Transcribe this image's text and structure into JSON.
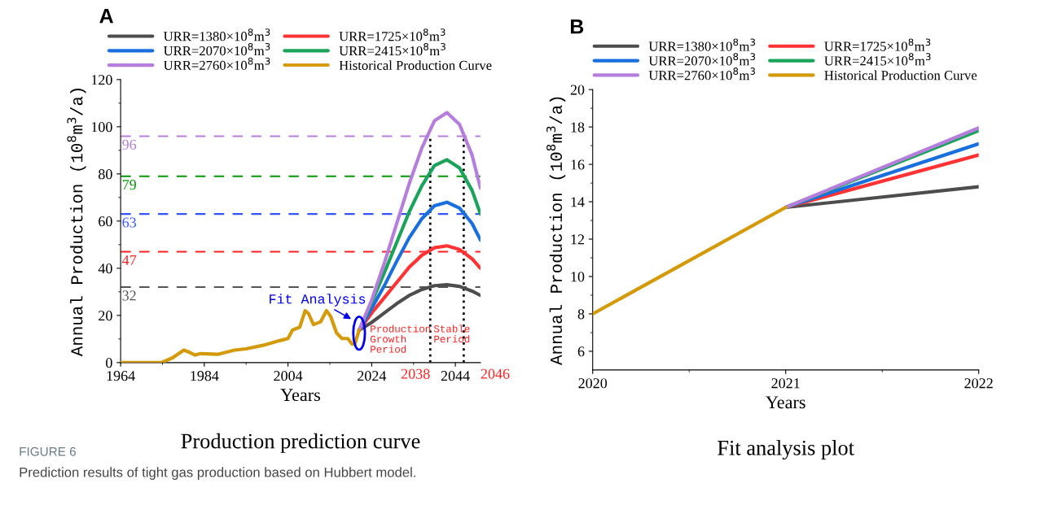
{
  "chart_data": [
    {
      "type": "line",
      "title": "A",
      "subtitle": "Production prediction curve",
      "xlabel": "Years",
      "ylabel": "Annual Production (10$^{8}$m$^{3}$/a)",
      "xlim": [
        1964,
        2050
      ],
      "xticks": [
        1964,
        1984,
        2004,
        2024,
        2044
      ],
      "ylim": [
        0,
        120
      ],
      "yticks": [
        0,
        20,
        40,
        60,
        80,
        100,
        120
      ],
      "legend": "top",
      "series": [
        {
          "name": "URR=1380×10$^{8}$m$^{3}$",
          "color": "#4d4d4d",
          "x": [
            2021,
            2024,
            2027,
            2030,
            2033,
            2036,
            2039,
            2042,
            2045,
            2048,
            2050
          ],
          "values": [
            13.7,
            17,
            21,
            25,
            28.5,
            31,
            32.6,
            33,
            32.3,
            30.3,
            28.5
          ]
        },
        {
          "name": "URR=1725×10$^{8}$m$^{3}$",
          "color": "#ff3333",
          "x": [
            2021,
            2024,
            2027,
            2030,
            2033,
            2036,
            2039,
            2042,
            2045,
            2048,
            2050
          ],
          "values": [
            13.7,
            21,
            27.5,
            34,
            40.5,
            45.5,
            48.7,
            49.5,
            48,
            44,
            40
          ]
        },
        {
          "name": "URR=2070×10$^{8}$m$^{3}$",
          "color": "#1a6fdf",
          "x": [
            2021,
            2024,
            2027,
            2030,
            2033,
            2036,
            2039,
            2042,
            2045,
            2048,
            2050
          ],
          "values": [
            13.7,
            23,
            32.5,
            43,
            53,
            61,
            66.5,
            68,
            65.5,
            59,
            52
          ]
        },
        {
          "name": "URR=2415×10$^{8}$m$^{3}$",
          "color": "#1aa35a",
          "x": [
            2021,
            2024,
            2027,
            2030,
            2033,
            2036,
            2039,
            2042,
            2045,
            2048,
            2050
          ],
          "values": [
            13.7,
            25.5,
            38,
            51,
            64,
            75,
            83.5,
            86,
            82.5,
            73,
            63
          ]
        },
        {
          "name": "URR=2760×10$^{8}$m$^{3}$",
          "color": "#b57edc",
          "x": [
            2021,
            2024,
            2027,
            2030,
            2033,
            2036,
            2039,
            2042,
            2045,
            2048,
            2050
          ],
          "values": [
            13.7,
            26.5,
            42,
            59,
            76,
            91,
            102.5,
            106,
            101,
            88,
            74
          ]
        },
        {
          "name": "Historical Production Curve",
          "color": "#d49a0a",
          "x": [
            1964,
            1973.7,
            1976.4,
            1979.1,
            1980.4,
            1981.8,
            1983.1,
            1987.2,
            1991.2,
            1993.9,
            1998,
            2002,
            2004,
            2005.1,
            2006.8,
            2008.1,
            2008.9,
            2010.1,
            2011.8,
            2013.2,
            2014.2,
            2015.6,
            2016.9,
            2018.3,
            2019.3,
            2020,
            2021
          ],
          "values": [
            0,
            0,
            2,
            5.3,
            4.4,
            3.2,
            3.8,
            3.5,
            5.3,
            5.8,
            7.3,
            9.3,
            10.2,
            13.8,
            15,
            22,
            20.8,
            16.1,
            17.3,
            22,
            19.6,
            12.6,
            10.2,
            10.2,
            7.9,
            8,
            13.7
          ]
        }
      ],
      "ref_lines": [
        {
          "axis": "y",
          "value": 96,
          "label": "96",
          "color": "#b57edc",
          "line_style": "dashed"
        },
        {
          "axis": "y",
          "value": 79,
          "label": "79",
          "color": "#009900",
          "line_style": "dashed"
        },
        {
          "axis": "y",
          "value": 63,
          "label": "63",
          "color": "#3355ff",
          "line_style": "dashed"
        },
        {
          "axis": "y",
          "value": 47,
          "label": "47",
          "color": "#ff2020",
          "line_style": "dashed"
        },
        {
          "axis": "y",
          "value": 32,
          "label": "32",
          "color": "#555555",
          "line_style": "dashed"
        },
        {
          "axis": "x",
          "value": 2038,
          "label": "2038",
          "color": "#000000",
          "line_style": "dotted"
        },
        {
          "axis": "x",
          "value": 2046,
          "label": "2046",
          "color": "#000000",
          "line_style": "dotted"
        }
      ],
      "annotations": [
        "Fit Analysis",
        "Production\nGrowth\nPeriod",
        "Stable\nPeriod",
        "FIGURE 6",
        "Prediction results of tight gas production based on Hubbert model."
      ]
    },
    {
      "type": "line",
      "title": "B",
      "subtitle": "Fit analysis plot",
      "xlabel": "Years",
      "ylabel": "Annual Production (10$^{8}$m$^{3}$/a)",
      "xlim": [
        2020,
        2022
      ],
      "xticks": [
        2020,
        2021,
        2022
      ],
      "ylim": [
        5,
        20
      ],
      "yticks": [
        6,
        8,
        10,
        12,
        14,
        16,
        18,
        20
      ],
      "legend": "top",
      "series": [
        {
          "name": "URR=1380×10$^{8}$m$^{3}$",
          "color": "#4d4d4d",
          "x": [
            2021,
            2022
          ],
          "values": [
            13.7,
            14.8
          ]
        },
        {
          "name": "URR=1725×10$^{8}$m$^{3}$",
          "color": "#ff3333",
          "x": [
            2021,
            2022
          ],
          "values": [
            13.7,
            16.5
          ]
        },
        {
          "name": "URR=2070×10$^{8}$m$^{3}$",
          "color": "#1a6fdf",
          "x": [
            2021,
            2022
          ],
          "values": [
            13.7,
            17.1
          ]
        },
        {
          "name": "URR=2415×10$^{8}$m$^{3}$",
          "color": "#1aa35a",
          "x": [
            2021,
            2022
          ],
          "values": [
            13.7,
            17.8
          ]
        },
        {
          "name": "URR=2760×10$^{8}$m$^{3}$",
          "color": "#b57edc",
          "x": [
            2021,
            2022
          ],
          "values": [
            13.7,
            17.95
          ]
        },
        {
          "name": "Historical Production Curve",
          "color": "#d49a0a",
          "x": [
            2020,
            2021
          ],
          "values": [
            8,
            13.7
          ]
        }
      ]
    }
  ]
}
